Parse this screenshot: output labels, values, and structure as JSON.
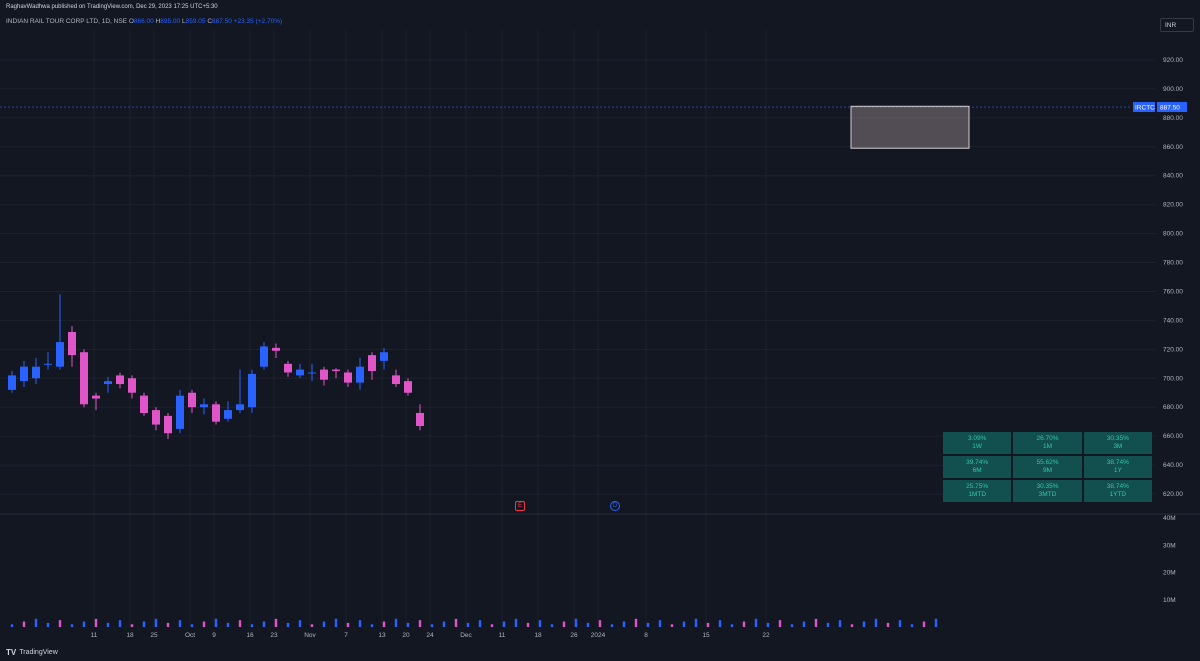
{
  "header": {
    "published": "RaghavWadhwa published on TradingView.com, Dec 29, 2023 17:25 UTC+5:30",
    "symbol_line": "INDIAN RAIL TOUR CORP LTD, 1D, NSE",
    "open_label": "O",
    "open": "866.00",
    "high_label": "H",
    "high": "895.00",
    "low_label": "L",
    "low": "859.05",
    "close_label": "C",
    "close": "887.50",
    "change": "+23.35 (+2.70%)"
  },
  "currency_button": "INR",
  "ticker_label": "IRCTC",
  "last_price": "887.50",
  "event_badges": {
    "earnings": "E",
    "dividend": "D"
  },
  "performance": [
    {
      "value": "3.09%",
      "period": "1W"
    },
    {
      "value": "26.70%",
      "period": "1M"
    },
    {
      "value": "30.35%",
      "period": "3M"
    },
    {
      "value": "39.74%",
      "period": "6M"
    },
    {
      "value": "55.62%",
      "period": "9M"
    },
    {
      "value": "38.74%",
      "period": "1Y"
    },
    {
      "value": "25.75%",
      "period": "1MTD"
    },
    {
      "value": "30.35%",
      "period": "3MTD"
    },
    {
      "value": "38.74%",
      "period": "1YTD"
    }
  ],
  "footer": {
    "logo": "TV",
    "brand": "TradingView"
  },
  "colors": {
    "up": "#2962ff",
    "down": "#e056c8",
    "bg": "#131722",
    "grid": "#1e222d",
    "text": "#b2b5be",
    "range_box": "#c8aeb5"
  },
  "chart_data": {
    "type": "candlestick",
    "price_ticks": [
      620,
      640,
      660,
      680,
      700,
      720,
      740,
      760,
      780,
      800,
      820,
      840,
      860,
      880,
      900,
      920
    ],
    "volume_ticks": [
      "10M",
      "20M",
      "30M",
      "40M"
    ],
    "x_tick_labels": [
      {
        "label": "11",
        "index": 2
      },
      {
        "label": "18",
        "index": 5
      },
      {
        "label": "25",
        "index": 7
      },
      {
        "label": "Oct",
        "index": 10
      },
      {
        "label": "9",
        "index": 12
      },
      {
        "label": "16",
        "index": 15
      },
      {
        "label": "23",
        "index": 17
      },
      {
        "label": "Nov",
        "index": 20
      },
      {
        "label": "7",
        "index": 23
      },
      {
        "label": "13",
        "index": 26
      },
      {
        "label": "20",
        "index": 28
      },
      {
        "label": "24",
        "index": 30
      },
      {
        "label": "Dec",
        "index": 33
      },
      {
        "label": "11",
        "index": 36
      },
      {
        "label": "18",
        "index": 39
      },
      {
        "label": "26",
        "index": 42
      },
      {
        "label": "2024",
        "index": 44
      },
      {
        "label": "8",
        "index": 48
      },
      {
        "label": "15",
        "index": 53
      },
      {
        "label": "22",
        "index": 58
      }
    ],
    "candles": [
      {
        "o": 692,
        "h": 705,
        "l": 690,
        "c": 702
      },
      {
        "o": 698,
        "h": 712,
        "l": 694,
        "c": 708
      },
      {
        "o": 700,
        "h": 714,
        "l": 696,
        "c": 708
      },
      {
        "o": 710,
        "h": 718,
        "l": 706,
        "c": 710
      },
      {
        "o": 708,
        "h": 758,
        "l": 706,
        "c": 725
      },
      {
        "o": 732,
        "h": 736,
        "l": 708,
        "c": 716
      },
      {
        "o": 718,
        "h": 720,
        "l": 680,
        "c": 682
      },
      {
        "o": 688,
        "h": 690,
        "l": 678,
        "c": 686
      },
      {
        "o": 696,
        "h": 701,
        "l": 690,
        "c": 698
      },
      {
        "o": 702,
        "h": 704,
        "l": 693,
        "c": 696
      },
      {
        "o": 700,
        "h": 702,
        "l": 686,
        "c": 690
      },
      {
        "o": 688,
        "h": 690,
        "l": 674,
        "c": 676
      },
      {
        "o": 678,
        "h": 680,
        "l": 664,
        "c": 668
      },
      {
        "o": 674,
        "h": 676,
        "l": 658,
        "c": 662
      },
      {
        "o": 665,
        "h": 692,
        "l": 662,
        "c": 688
      },
      {
        "o": 690,
        "h": 692,
        "l": 676,
        "c": 680
      },
      {
        "o": 680,
        "h": 686,
        "l": 675,
        "c": 682
      },
      {
        "o": 682,
        "h": 684,
        "l": 668,
        "c": 670
      },
      {
        "o": 672,
        "h": 684,
        "l": 670,
        "c": 678
      },
      {
        "o": 678,
        "h": 706,
        "l": 676,
        "c": 682
      },
      {
        "o": 680,
        "h": 706,
        "l": 676,
        "c": 703
      },
      {
        "o": 708,
        "h": 725,
        "l": 706,
        "c": 722
      },
      {
        "o": 721,
        "h": 724,
        "l": 714,
        "c": 719
      },
      {
        "o": 710,
        "h": 712,
        "l": 701,
        "c": 704
      },
      {
        "o": 702,
        "h": 710,
        "l": 700,
        "c": 706
      },
      {
        "o": 704,
        "h": 710,
        "l": 698,
        "c": 704
      },
      {
        "o": 706,
        "h": 708,
        "l": 695,
        "c": 699
      },
      {
        "o": 706,
        "h": 707,
        "l": 700,
        "c": 705
      },
      {
        "o": 704,
        "h": 706,
        "l": 694,
        "c": 697
      },
      {
        "o": 697,
        "h": 714,
        "l": 692,
        "c": 708
      },
      {
        "o": 716,
        "h": 718,
        "l": 699,
        "c": 705
      },
      {
        "o": 712,
        "h": 721,
        "l": 706,
        "c": 718
      },
      {
        "o": 702,
        "h": 706,
        "l": 694,
        "c": 696
      },
      {
        "o": 698,
        "h": 700,
        "l": 688,
        "c": 690
      },
      {
        "o": 676,
        "h": 682,
        "l": 664,
        "c": 667
      }
    ]
  }
}
